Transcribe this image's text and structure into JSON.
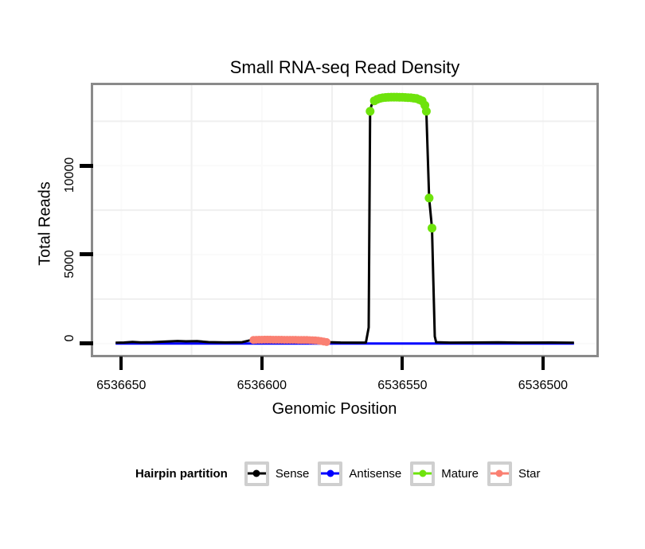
{
  "chart_data": {
    "type": "line",
    "title": "Small RNA-seq Read Density",
    "xlabel": "Genomic Position",
    "ylabel": "Total Reads",
    "x_axis_reversed": true,
    "xlim": [
      6536660,
      6536481
    ],
    "ylim": [
      -640,
      14533
    ],
    "x_ticks": [
      6536650,
      6536600,
      6536550,
      6536500
    ],
    "y_ticks": [
      0,
      5000,
      10000
    ],
    "x_grid_minor": [
      6536625,
      6536575,
      6536525
    ],
    "y_grid_minor": [
      2500,
      7500,
      12500
    ],
    "grid_color_major": "#fafafa",
    "grid_color_minor": "#efefef",
    "panel_border_color": "#8a8a8a",
    "legend": {
      "title": "Hairpin partition",
      "items": [
        {
          "label": "Sense",
          "color": "#000000"
        },
        {
          "label": "Antisense",
          "color": "#0000ff"
        },
        {
          "label": "Mature",
          "color": "#6ee30c"
        },
        {
          "label": "Star",
          "color": "#fa8072"
        }
      ]
    },
    "series": [
      {
        "name": "Antisense",
        "color": "#0000ff",
        "type": "line",
        "width": 3,
        "points": [
          [
            6536652,
            0
          ],
          [
            6536489,
            0
          ]
        ]
      },
      {
        "name": "Sense",
        "color": "#000000",
        "type": "line",
        "width": 3,
        "points": [
          [
            6536652,
            40
          ],
          [
            6536649,
            55
          ],
          [
            6536646,
            90
          ],
          [
            6536643,
            60
          ],
          [
            6536639,
            70
          ],
          [
            6536634,
            110
          ],
          [
            6536630,
            140
          ],
          [
            6536627,
            120
          ],
          [
            6536623,
            130
          ],
          [
            6536619,
            75
          ],
          [
            6536613,
            60
          ],
          [
            6536607,
            70
          ],
          [
            6536604,
            185
          ],
          [
            6536601,
            210
          ],
          [
            6536597,
            215
          ],
          [
            6536592,
            210
          ],
          [
            6536587,
            205
          ],
          [
            6536583,
            195
          ],
          [
            6536580,
            170
          ],
          [
            6536578,
            110
          ],
          [
            6536576,
            70
          ],
          [
            6536572,
            55
          ],
          [
            6536566,
            50
          ],
          [
            6536563,
            55
          ],
          [
            6536562,
            900
          ],
          [
            6536561.5,
            13060
          ],
          [
            6536561,
            13400
          ],
          [
            6536560,
            13650
          ],
          [
            6536558,
            13790
          ],
          [
            6536556,
            13840
          ],
          [
            6536553,
            13855
          ],
          [
            6536550,
            13850
          ],
          [
            6536547,
            13820
          ],
          [
            6536545,
            13780
          ],
          [
            6536543,
            13650
          ],
          [
            6536542,
            13400
          ],
          [
            6536541.5,
            13060
          ],
          [
            6536540.5,
            8180
          ],
          [
            6536539.5,
            6490
          ],
          [
            6536539,
            3500
          ],
          [
            6536538.5,
            400
          ],
          [
            6536538,
            70
          ],
          [
            6536533,
            50
          ],
          [
            6536525,
            55
          ],
          [
            6536516,
            65
          ],
          [
            6536508,
            50
          ],
          [
            6536497,
            55
          ],
          [
            6536489,
            45
          ]
        ]
      },
      {
        "name": "Star",
        "color": "#fa8072",
        "type": "points",
        "radius": 5,
        "points": [
          [
            6536603,
            195
          ],
          [
            6536602,
            205
          ],
          [
            6536601,
            210
          ],
          [
            6536600,
            212
          ],
          [
            6536599,
            213
          ],
          [
            6536598,
            214
          ],
          [
            6536597,
            213
          ],
          [
            6536596,
            212
          ],
          [
            6536595,
            211
          ],
          [
            6536594,
            210
          ],
          [
            6536593,
            209
          ],
          [
            6536592,
            208
          ],
          [
            6536591,
            207
          ],
          [
            6536590,
            206
          ],
          [
            6536589,
            205
          ],
          [
            6536588,
            204
          ],
          [
            6536587,
            202
          ],
          [
            6536586,
            200
          ],
          [
            6536585,
            198
          ],
          [
            6536584,
            195
          ],
          [
            6536583,
            190
          ],
          [
            6536582,
            185
          ],
          [
            6536581,
            175
          ],
          [
            6536580,
            160
          ],
          [
            6536579,
            140
          ],
          [
            6536578,
            110
          ],
          [
            6536577,
            80
          ]
        ]
      },
      {
        "name": "Mature",
        "color": "#6ee30c",
        "type": "points",
        "radius": 5.5,
        "points": [
          [
            6536561.5,
            13060
          ],
          [
            6536560,
            13650
          ],
          [
            6536559,
            13730
          ],
          [
            6536558,
            13790
          ],
          [
            6536557,
            13820
          ],
          [
            6536556,
            13840
          ],
          [
            6536555,
            13850
          ],
          [
            6536554,
            13855
          ],
          [
            6536553,
            13855
          ],
          [
            6536552,
            13855
          ],
          [
            6536551,
            13850
          ],
          [
            6536550,
            13850
          ],
          [
            6536549,
            13840
          ],
          [
            6536548,
            13830
          ],
          [
            6536547,
            13820
          ],
          [
            6536546,
            13800
          ],
          [
            6536545,
            13780
          ],
          [
            6536544,
            13720
          ],
          [
            6536543,
            13650
          ],
          [
            6536542,
            13400
          ],
          [
            6536541.5,
            13060
          ],
          [
            6536540.5,
            8180
          ],
          [
            6536539.5,
            6490
          ]
        ]
      }
    ]
  }
}
